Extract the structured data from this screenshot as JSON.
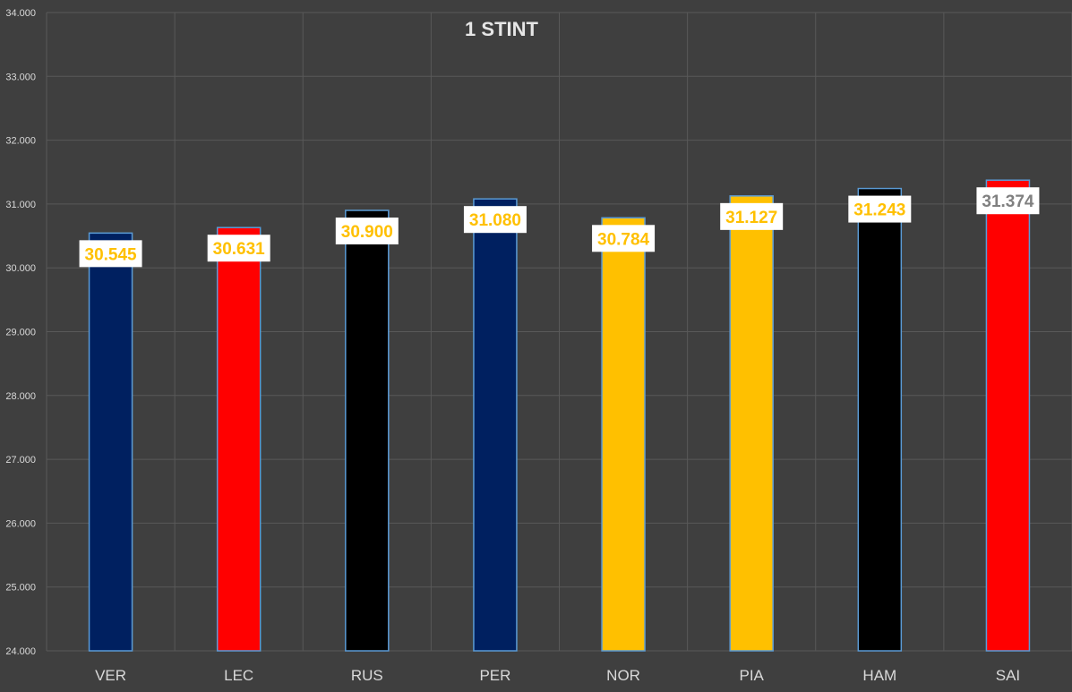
{
  "chart_data": {
    "type": "bar",
    "title": "1 STINT",
    "xlabel": "",
    "ylabel": "",
    "ylim": [
      24.0,
      34.0
    ],
    "ytick_step": 1,
    "yticks": [
      "24.000",
      "25.000",
      "26.000",
      "27.000",
      "28.000",
      "29.000",
      "30.000",
      "31.000",
      "32.000",
      "33.000",
      "34.000"
    ],
    "categories": [
      "VER",
      "LEC",
      "RUS",
      "PER",
      "NOR",
      "PIA",
      "HAM",
      "SAI"
    ],
    "values": [
      30.545,
      30.631,
      30.9,
      31.08,
      30.784,
      31.127,
      31.243,
      31.374
    ],
    "data_labels": [
      "30.545",
      "30.631",
      "30.900",
      "31.080",
      "30.784",
      "31.127",
      "31.243",
      "31.374"
    ],
    "bar_colors": [
      "#002060",
      "#ff0000",
      "#000000",
      "#002060",
      "#ffc000",
      "#ffc000",
      "#000000",
      "#ff0000"
    ],
    "label_colors": [
      "#ffc000",
      "#ffc000",
      "#ffc000",
      "#ffc000",
      "#ffc000",
      "#ffc000",
      "#ffc000",
      "#808080"
    ],
    "grid": true,
    "legend": "none"
  },
  "colors": {
    "background": "#3f3f3f",
    "gridline": "#595959",
    "bar_outline": "#5b9bd5",
    "label_box": "#ffffff"
  }
}
